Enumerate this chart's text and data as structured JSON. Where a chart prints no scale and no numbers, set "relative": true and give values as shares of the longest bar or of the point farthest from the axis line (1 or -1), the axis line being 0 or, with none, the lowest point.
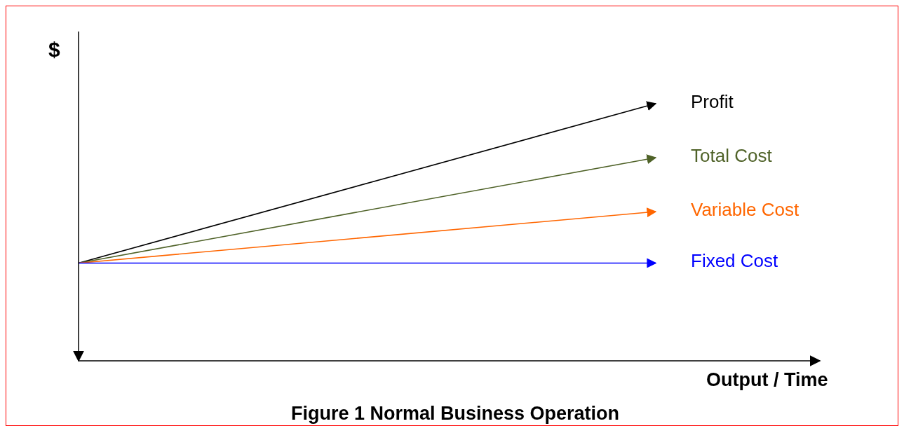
{
  "chart_data": {
    "type": "line",
    "title": "Figure 1 Normal Business Operation",
    "xlabel": "Output / Time",
    "ylabel": "$",
    "relative": true,
    "categories": [
      null,
      null
    ],
    "legend": false,
    "grid": false,
    "marker": "none",
    "line_style": "solid",
    "series": [
      {
        "name": "Profit",
        "color": "#000000",
        "values": [
          0.38,
          1
        ]
      },
      {
        "name": "Total Cost",
        "color": "#4f6228",
        "values": [
          0.38,
          0.79
        ]
      },
      {
        "name": "Variable Cost",
        "color": "#ff6600",
        "values": [
          0.38,
          0.58
        ]
      },
      {
        "name": "Fixed Cost",
        "color": "#0000ff",
        "values": [
          0.38,
          0.38
        ]
      }
    ]
  }
}
